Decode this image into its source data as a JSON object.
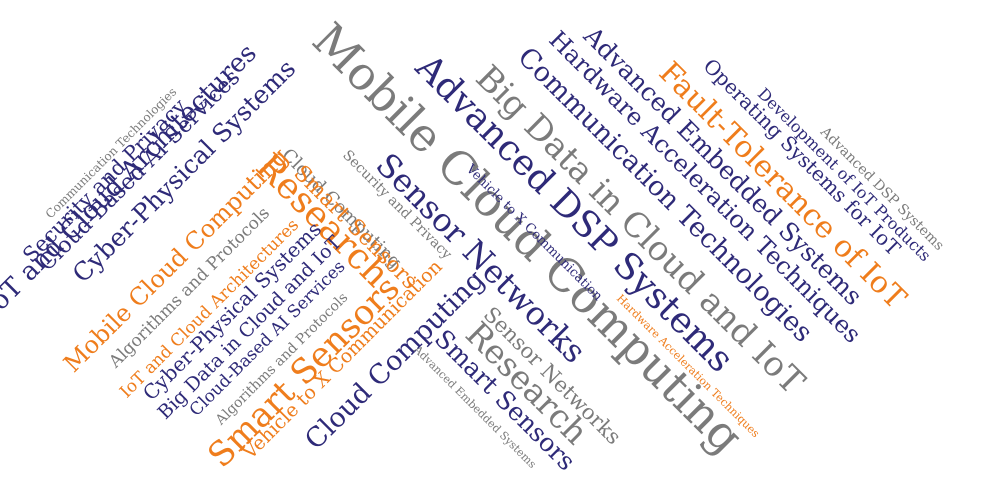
{
  "palette": {
    "navy": "#2e2a78",
    "gray": "#7b7b7b",
    "orange": "#ef7d1c"
  },
  "words": [
    {
      "text": "Mobile Cloud Computing",
      "color": "gray"
    },
    {
      "text": "Advanced DSP Systems",
      "color": "navy"
    },
    {
      "text": "Big Data in Cloud and IoT",
      "color": "gray"
    },
    {
      "text": "Communication Technologies",
      "color": "navy"
    },
    {
      "text": "Hardware Acceleration Techniques",
      "color": "navy"
    },
    {
      "text": "Advanced Embedded Systems",
      "color": "navy"
    },
    {
      "text": "Fault-Tolerance of IoT",
      "color": "orange"
    },
    {
      "text": "Operating Systems for IoT",
      "color": "navy"
    },
    {
      "text": "Development of IoT Products",
      "color": "navy"
    },
    {
      "text": "Advanced DSP Systems",
      "color": "gray"
    },
    {
      "text": "Sensor Networks",
      "color": "navy"
    },
    {
      "text": "Vehicle to X Communication",
      "color": "navy"
    },
    {
      "text": "Security and Privacy",
      "color": "gray"
    },
    {
      "text": "Cloud Computing",
      "color": "gray"
    },
    {
      "text": "Research",
      "color": "orange"
    },
    {
      "text": "Smart Sensors",
      "color": "orange"
    },
    {
      "text": "Mobile Cloud Computing",
      "color": "orange"
    },
    {
      "text": "IoT and Cloud Architectures",
      "color": "navy"
    },
    {
      "text": "Cyber-Physical Systems",
      "color": "navy"
    },
    {
      "text": "Cloud-Based AI Services",
      "color": "navy"
    },
    {
      "text": "Security and Privacy",
      "color": "navy"
    },
    {
      "text": "Communication Technologies",
      "color": "gray"
    },
    {
      "text": "Algorithms and Protocols",
      "color": "gray"
    },
    {
      "text": "IoT and Cloud Architectures",
      "color": "orange"
    },
    {
      "text": "Cyber-Physical Systems",
      "color": "navy"
    },
    {
      "text": "Big Data in Cloud and IoT",
      "color": "navy"
    },
    {
      "text": "Cloud-Based AI Services",
      "color": "navy"
    },
    {
      "text": "Algorithms and Protocols",
      "color": "gray"
    },
    {
      "text": "Smart Sensors",
      "color": "orange"
    },
    {
      "text": "Vehicle to X Communication",
      "color": "orange"
    },
    {
      "text": "Cloud Computing",
      "color": "navy"
    },
    {
      "text": "Sensor Networks",
      "color": "gray"
    },
    {
      "text": "Research",
      "color": "gray"
    },
    {
      "text": "Smart Sensors",
      "color": "navy"
    },
    {
      "text": "Advanced Embedded Systems",
      "color": "gray"
    },
    {
      "text": "Hardware Acceleration Techniques",
      "color": "orange"
    }
  ]
}
